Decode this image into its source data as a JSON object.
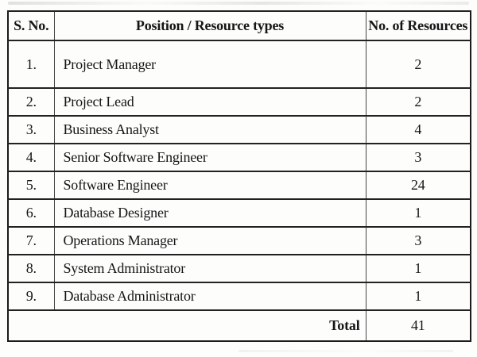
{
  "colors": {
    "ink": "#1b1b1b",
    "paper": "#fdfdfc"
  },
  "table": {
    "headers": {
      "sno": "S. No.",
      "position": "Position / Resource types",
      "count": "No. of Resources"
    },
    "rows": [
      {
        "sno": "1.",
        "position": "Project Manager",
        "count": "2"
      },
      {
        "sno": "2.",
        "position": "Project Lead",
        "count": "2"
      },
      {
        "sno": "3.",
        "position": "Business Analyst",
        "count": "4"
      },
      {
        "sno": "4.",
        "position": "Senior Software Engineer",
        "count": "3"
      },
      {
        "sno": "5.",
        "position": "Software Engineer",
        "count": "24"
      },
      {
        "sno": "6.",
        "position": "Database Designer",
        "count": "1"
      },
      {
        "sno": "7.",
        "position": "Operations Manager",
        "count": "3"
      },
      {
        "sno": "8.",
        "position": "System Administrator",
        "count": "1"
      },
      {
        "sno": "9.",
        "position": "Database Administrator",
        "count": "1"
      }
    ],
    "total": {
      "label": "Total",
      "value": "41"
    }
  }
}
